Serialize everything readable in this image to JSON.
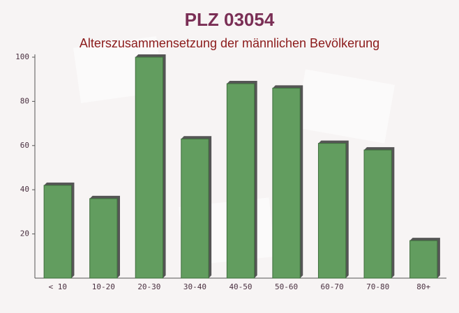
{
  "chart_data": {
    "type": "bar",
    "title": "PLZ 03054",
    "subtitle": "Alterszusammensetzung der männlichen Bevölkerung",
    "categories": [
      "< 10",
      "10-20",
      "20-30",
      "30-40",
      "40-50",
      "50-60",
      "60-70",
      "70-80",
      "80+"
    ],
    "values": [
      42,
      36,
      100,
      63,
      88,
      86,
      61,
      58,
      17
    ],
    "color": "#629d5f",
    "ylim": [
      0,
      100
    ],
    "yticks": [
      20,
      40,
      60,
      80,
      100
    ]
  }
}
